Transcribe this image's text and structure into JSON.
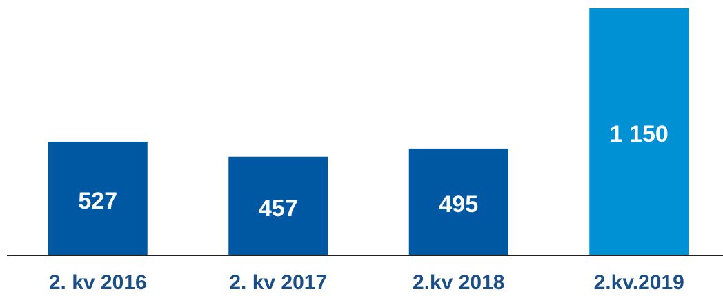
{
  "chart_data": {
    "type": "bar",
    "categories": [
      "2. kv 2016",
      "2. kv 2017",
      "2.kv 2018",
      "2.kv.2019"
    ],
    "values": [
      527,
      457,
      495,
      1150
    ],
    "value_labels": [
      "527",
      "457",
      "495",
      "1 150"
    ],
    "colors": [
      "#0058a3",
      "#0058a3",
      "#0058a3",
      "#0091d5"
    ],
    "ylim": [
      0,
      1150
    ]
  }
}
